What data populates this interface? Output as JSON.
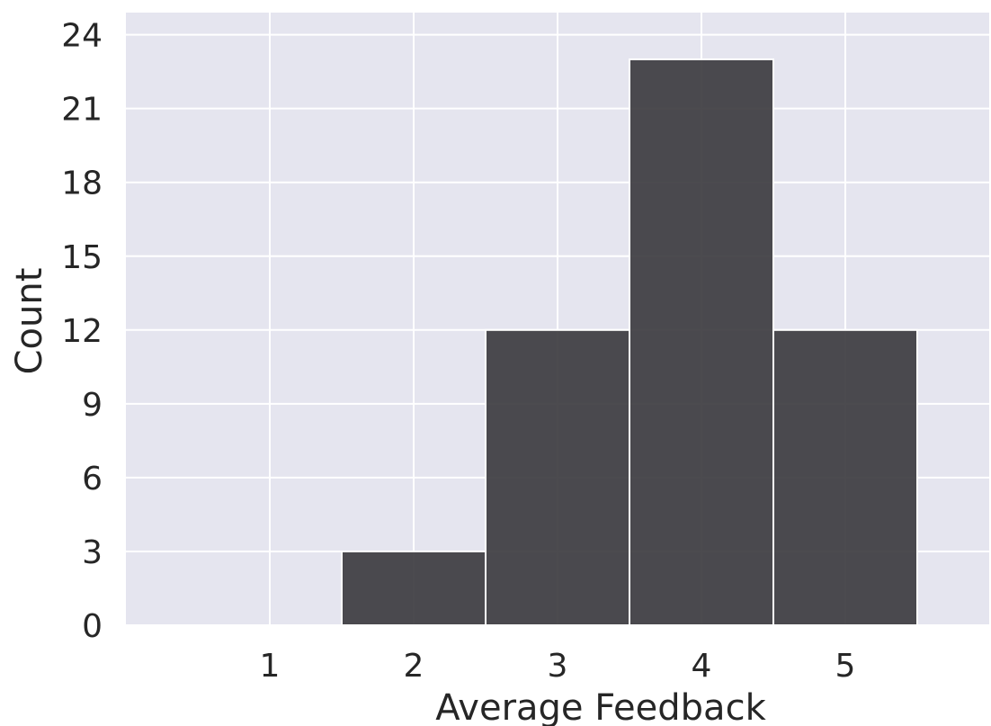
{
  "chart_data": {
    "type": "bar",
    "title": "",
    "xlabel": "Average Feedback",
    "ylabel": "Count",
    "categories": [
      1,
      2,
      3,
      4,
      5
    ],
    "values": [
      0,
      3,
      12,
      23,
      12
    ],
    "xlim": [
      0,
      6
    ],
    "ylim": [
      0,
      24.9
    ],
    "xticks": [
      1,
      2,
      3,
      4,
      5
    ],
    "yticks": [
      0,
      3,
      6,
      9,
      12,
      15,
      18,
      21,
      24
    ],
    "grid": true,
    "colors": {
      "background": "#e5e5ef",
      "grid": "#ffffff",
      "bar": "#3d3c40",
      "bar_edge": "#ffffff"
    }
  }
}
